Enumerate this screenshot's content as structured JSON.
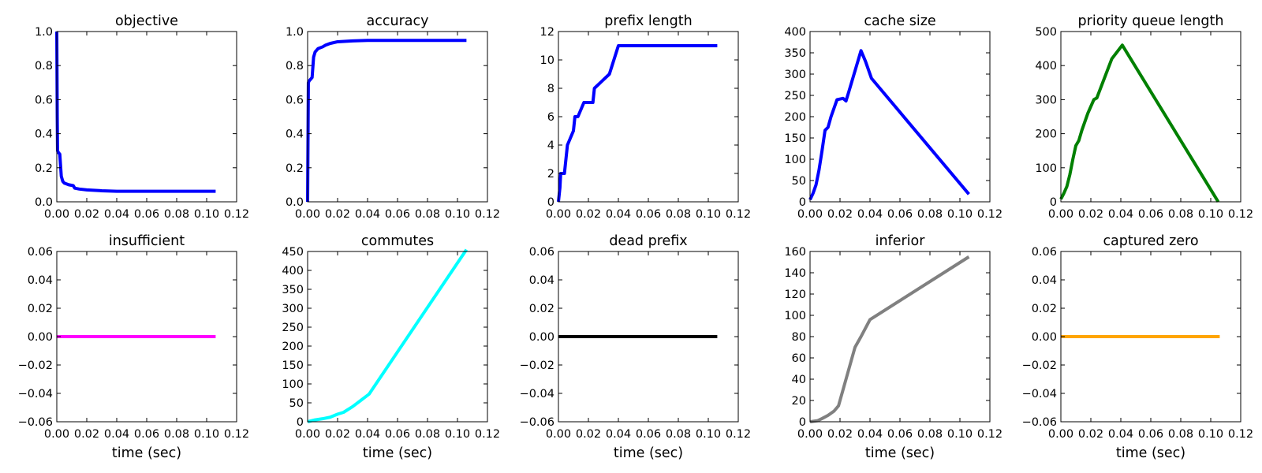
{
  "chart_data": [
    {
      "type": "line",
      "title": "objective",
      "xlabel": "",
      "ylabel": "",
      "xlim": [
        0,
        0.12
      ],
      "ylim": [
        0,
        1.0
      ],
      "xticks": [
        "0.00",
        "0.02",
        "0.04",
        "0.06",
        "0.08",
        "0.10",
        "0.12"
      ],
      "yticks": [
        "0.0",
        "0.2",
        "0.4",
        "0.6",
        "0.8",
        "1.0"
      ],
      "color": "#0000ff",
      "series": [
        {
          "x": [
            0,
            0.0003,
            0.0005,
            0.001,
            0.002,
            0.003,
            0.004,
            0.005,
            0.008,
            0.011,
            0.012,
            0.015,
            0.02,
            0.03,
            0.04,
            0.06,
            0.08,
            0.106
          ],
          "y": [
            1.0,
            0.5,
            0.3,
            0.29,
            0.28,
            0.15,
            0.12,
            0.11,
            0.1,
            0.095,
            0.08,
            0.075,
            0.07,
            0.065,
            0.062,
            0.062,
            0.062,
            0.062
          ]
        }
      ]
    },
    {
      "type": "line",
      "title": "accuracy",
      "xlabel": "",
      "ylabel": "",
      "xlim": [
        0,
        0.12
      ],
      "ylim": [
        0,
        1.0
      ],
      "xticks": [
        "0.00",
        "0.02",
        "0.04",
        "0.06",
        "0.08",
        "0.10",
        "0.12"
      ],
      "yticks": [
        "0.0",
        "0.2",
        "0.4",
        "0.6",
        "0.8",
        "1.0"
      ],
      "color": "#0000ff",
      "series": [
        {
          "x": [
            0,
            0.0005,
            0.001,
            0.003,
            0.004,
            0.005,
            0.007,
            0.01,
            0.012,
            0.015,
            0.02,
            0.03,
            0.04,
            0.06,
            0.08,
            0.106
          ],
          "y": [
            0,
            0.7,
            0.71,
            0.73,
            0.85,
            0.88,
            0.9,
            0.91,
            0.92,
            0.93,
            0.94,
            0.945,
            0.948,
            0.948,
            0.948,
            0.948
          ]
        }
      ]
    },
    {
      "type": "line",
      "title": "prefix length",
      "xlabel": "",
      "ylabel": "",
      "xlim": [
        0,
        0.12
      ],
      "ylim": [
        0,
        12
      ],
      "xticks": [
        "0.00",
        "0.02",
        "0.04",
        "0.06",
        "0.08",
        "0.10",
        "0.12"
      ],
      "yticks": [
        "0",
        "2",
        "4",
        "6",
        "8",
        "10",
        "12"
      ],
      "color": "#0000ff",
      "series": [
        {
          "x": [
            0,
            0.001,
            0.0015,
            0.002,
            0.004,
            0.006,
            0.008,
            0.01,
            0.011,
            0.013,
            0.015,
            0.017,
            0.019,
            0.023,
            0.024,
            0.034,
            0.04,
            0.06,
            0.08,
            0.106
          ],
          "y": [
            0,
            1,
            2,
            2,
            2,
            4,
            4.5,
            5,
            6,
            6,
            6.5,
            7,
            7,
            7,
            8,
            9,
            11,
            11,
            11,
            11
          ]
        }
      ]
    },
    {
      "type": "line",
      "title": "cache size",
      "xlabel": "",
      "ylabel": "",
      "xlim": [
        0,
        0.12
      ],
      "ylim": [
        0,
        400
      ],
      "xticks": [
        "0.00",
        "0.02",
        "0.04",
        "0.06",
        "0.08",
        "0.10",
        "0.12"
      ],
      "yticks": [
        "0",
        "50",
        "100",
        "150",
        "200",
        "250",
        "300",
        "350",
        "400"
      ],
      "color": "#0000ff",
      "series": [
        {
          "x": [
            0,
            0.002,
            0.004,
            0.006,
            0.008,
            0.01,
            0.012,
            0.014,
            0.018,
            0.022,
            0.024,
            0.026,
            0.034,
            0.037,
            0.041,
            0.106
          ],
          "y": [
            5,
            20,
            40,
            75,
            120,
            168,
            175,
            200,
            240,
            243,
            237,
            260,
            355,
            330,
            290,
            18
          ]
        }
      ]
    },
    {
      "type": "line",
      "title": "priority queue length",
      "xlabel": "",
      "ylabel": "",
      "xlim": [
        0,
        0.12
      ],
      "ylim": [
        0,
        500
      ],
      "xticks": [
        "0.00",
        "0.02",
        "0.04",
        "0.06",
        "0.08",
        "0.10",
        "0.12"
      ],
      "yticks": [
        "0",
        "100",
        "200",
        "300",
        "400",
        "500"
      ],
      "color": "#008000",
      "series": [
        {
          "x": [
            0,
            0.002,
            0.004,
            0.006,
            0.008,
            0.01,
            0.012,
            0.014,
            0.018,
            0.022,
            0.024,
            0.034,
            0.041,
            0.105
          ],
          "y": [
            8,
            25,
            45,
            80,
            125,
            165,
            180,
            210,
            260,
            300,
            305,
            420,
            460,
            0
          ]
        }
      ]
    },
    {
      "type": "line",
      "title": "insufficient",
      "xlabel": "time (sec)",
      "ylabel": "",
      "xlim": [
        0,
        0.12
      ],
      "ylim": [
        -0.06,
        0.06
      ],
      "xticks": [
        "0.00",
        "0.02",
        "0.04",
        "0.06",
        "0.08",
        "0.10",
        "0.12"
      ],
      "yticks": [
        "−0.06",
        "−0.04",
        "−0.02",
        "0.00",
        "0.02",
        "0.04",
        "0.06"
      ],
      "color": "#ff00ff",
      "series": [
        {
          "x": [
            0,
            0.106
          ],
          "y": [
            0,
            0
          ]
        }
      ]
    },
    {
      "type": "line",
      "title": "commutes",
      "xlabel": "time (sec)",
      "ylabel": "",
      "xlim": [
        0,
        0.12
      ],
      "ylim": [
        0,
        450
      ],
      "xticks": [
        "0.00",
        "0.02",
        "0.04",
        "0.06",
        "0.08",
        "0.10",
        "0.12"
      ],
      "yticks": [
        "0",
        "50",
        "100",
        "150",
        "200",
        "250",
        "300",
        "350",
        "400",
        "450"
      ],
      "color": "#00ffff",
      "series": [
        {
          "x": [
            0,
            0.005,
            0.01,
            0.015,
            0.02,
            0.024,
            0.03,
            0.035,
            0.041,
            0.106
          ],
          "y": [
            0,
            5,
            8,
            12,
            20,
            25,
            40,
            55,
            73,
            455
          ]
        }
      ]
    },
    {
      "type": "line",
      "title": "dead prefix",
      "xlabel": "time (sec)",
      "ylabel": "",
      "xlim": [
        0,
        0.12
      ],
      "ylim": [
        -0.06,
        0.06
      ],
      "xticks": [
        "0.00",
        "0.02",
        "0.04",
        "0.06",
        "0.08",
        "0.10",
        "0.12"
      ],
      "yticks": [
        "−0.06",
        "−0.04",
        "−0.02",
        "0.00",
        "0.02",
        "0.04",
        "0.06"
      ],
      "color": "#000000",
      "series": [
        {
          "x": [
            0,
            0.106
          ],
          "y": [
            0,
            0
          ]
        }
      ]
    },
    {
      "type": "line",
      "title": "inferior",
      "xlabel": "time (sec)",
      "ylabel": "",
      "xlim": [
        0,
        0.12
      ],
      "ylim": [
        0,
        160
      ],
      "xticks": [
        "0.00",
        "0.02",
        "0.04",
        "0.06",
        "0.08",
        "0.10",
        "0.12"
      ],
      "yticks": [
        "0",
        "20",
        "40",
        "60",
        "80",
        "100",
        "120",
        "140",
        "160"
      ],
      "color": "#808080",
      "series": [
        {
          "x": [
            0,
            0.005,
            0.008,
            0.012,
            0.016,
            0.019,
            0.02,
            0.022,
            0.026,
            0.03,
            0.034,
            0.04,
            0.106
          ],
          "y": [
            0,
            1,
            3,
            6,
            10,
            15,
            20,
            30,
            50,
            70,
            80,
            96,
            155
          ]
        }
      ]
    },
    {
      "type": "line",
      "title": "captured zero",
      "xlabel": "time (sec)",
      "ylabel": "",
      "xlim": [
        0,
        0.12
      ],
      "ylim": [
        -0.06,
        0.06
      ],
      "xticks": [
        "0.00",
        "0.02",
        "0.04",
        "0.06",
        "0.08",
        "0.10",
        "0.12"
      ],
      "yticks": [
        "−0.06",
        "−0.04",
        "−0.02",
        "0.00",
        "0.02",
        "0.04",
        "0.06"
      ],
      "color": "#ffa500",
      "series": [
        {
          "x": [
            0,
            0.106
          ],
          "y": [
            0,
            0
          ]
        }
      ]
    }
  ]
}
